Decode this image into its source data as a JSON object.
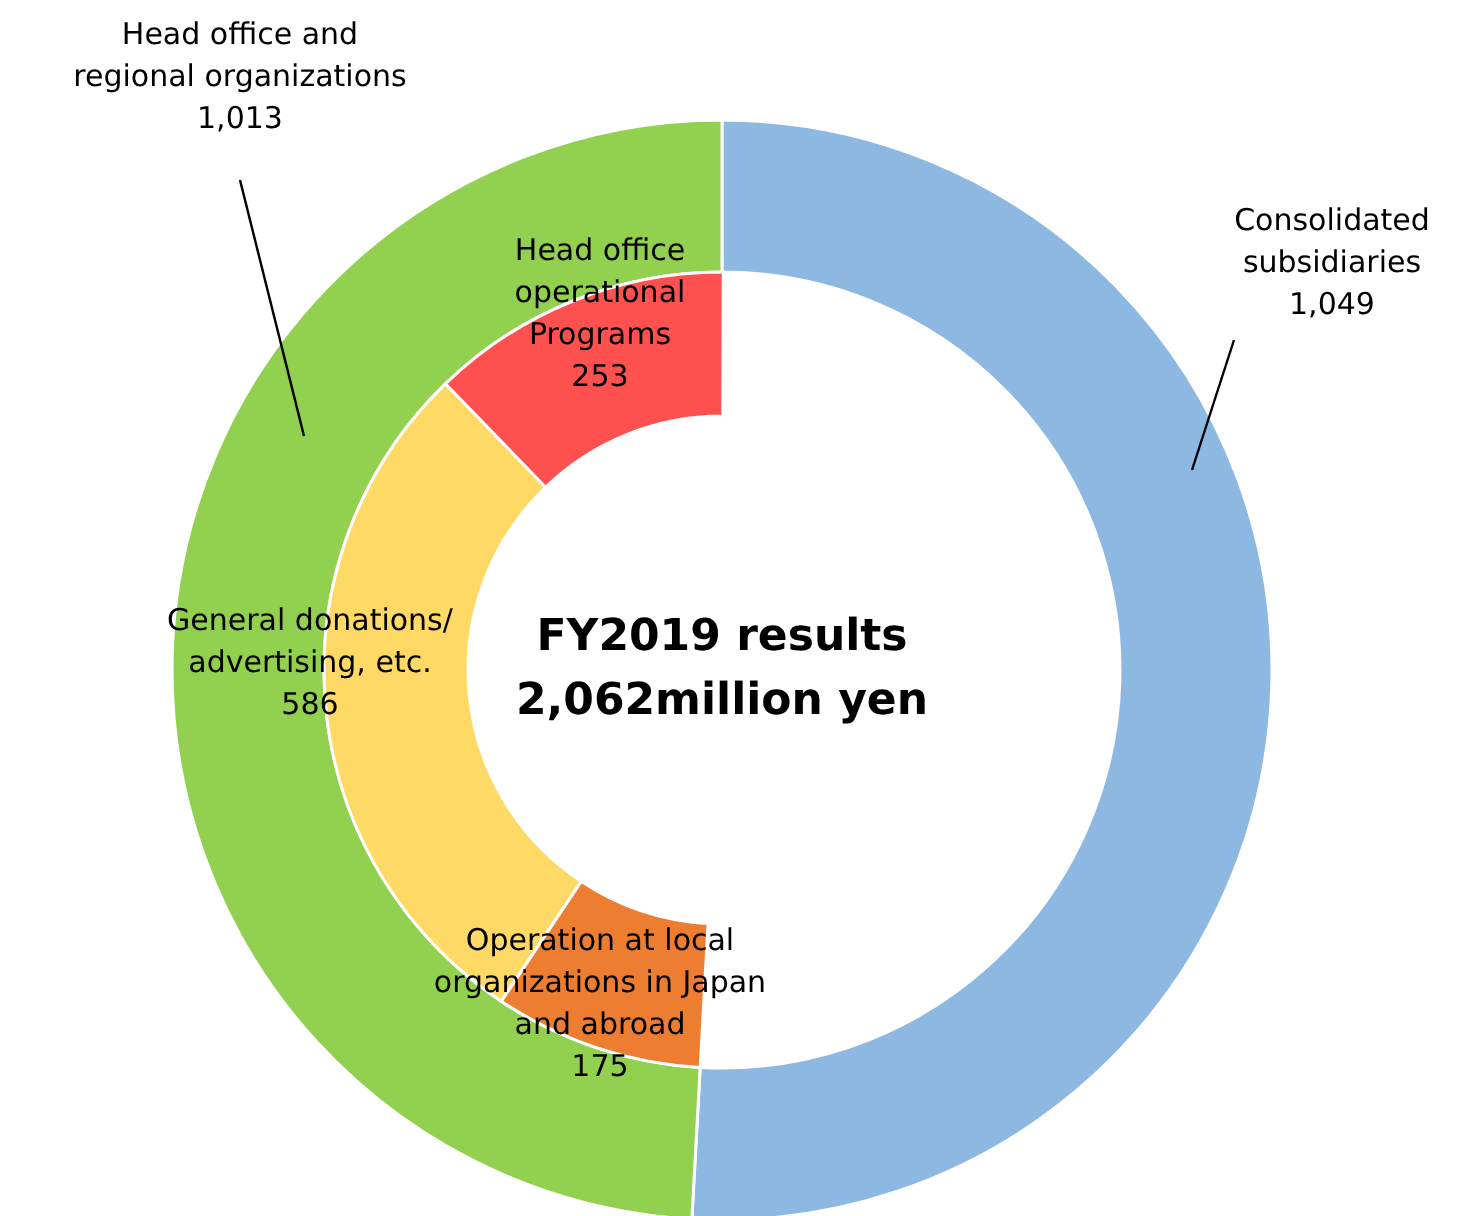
{
  "chart_data": [
    {
      "type": "donut",
      "title": "FY2019 results",
      "subtitle": "2,062million yen",
      "categories": [
        "Consolidated\nsubsidiaries",
        "Head office and\nregional organizations"
      ],
      "values": [
        1049,
        1013
      ],
      "colors": [
        "#8db8e2",
        "#92d050"
      ],
      "value_labels": [
        "1,049",
        "1,013"
      ]
    },
    {
      "type": "donut",
      "categories": [
        "Operation at local\norganizations in Japan\nand abroad",
        "General donations/\nadvertising, etc.",
        "Head office\noperational\nPrograms"
      ],
      "values": [
        175,
        586,
        253
      ],
      "colors": [
        "#ed7d31",
        "#ffd966",
        "#ff5050"
      ],
      "value_labels": [
        "175",
        "586",
        "253"
      ]
    }
  ]
}
